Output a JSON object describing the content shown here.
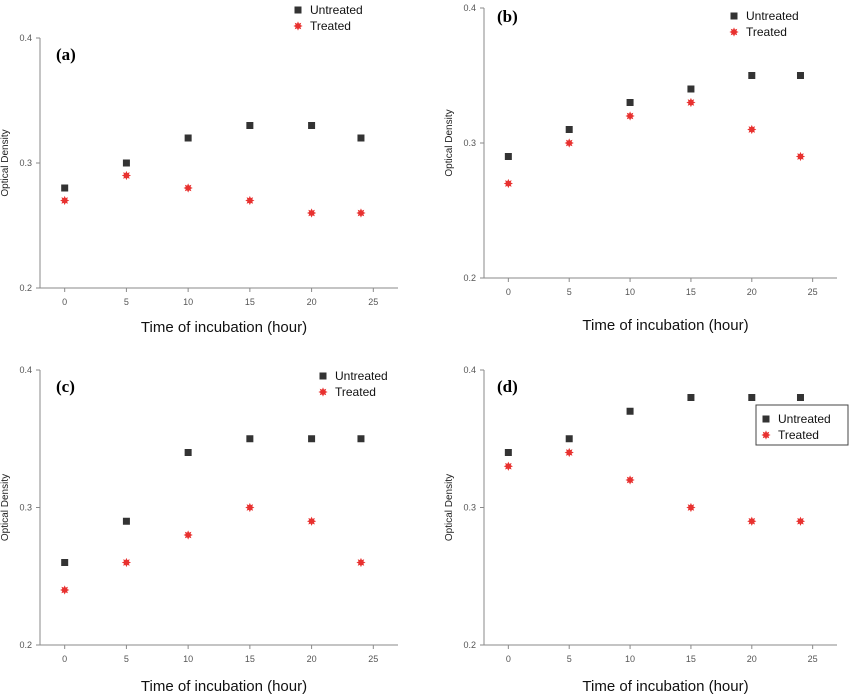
{
  "chart_data": [
    {
      "type": "scatter",
      "panel_label": "(a)",
      "xlabel": "Time of incubation (hour)",
      "ylabel": "Optical Density",
      "xlim": [
        -2,
        27
      ],
      "ylim": [
        0.2,
        0.4
      ],
      "xticks": [
        0,
        5,
        10,
        15,
        20,
        25
      ],
      "yticks": [
        0.2,
        0.3,
        0.4
      ],
      "ytick_labels": [
        "0.2",
        "0.3",
        "0.4"
      ],
      "legend_position": "top-right",
      "x": [
        0,
        5,
        10,
        15,
        20,
        24
      ],
      "series": [
        {
          "name": "Untreated",
          "values": [
            0.28,
            0.3,
            0.32,
            0.33,
            0.33,
            0.32
          ]
        },
        {
          "name": "Treated",
          "values": [
            0.27,
            0.29,
            0.28,
            0.27,
            0.26,
            0.26
          ]
        }
      ]
    },
    {
      "type": "scatter",
      "panel_label": "(b)",
      "xlabel": "Time of incubation (hour)",
      "ylabel": "Optical Density",
      "xlim": [
        -2,
        27
      ],
      "ylim": [
        0.2,
        0.4
      ],
      "xticks": [
        0,
        5,
        10,
        15,
        20,
        25
      ],
      "yticks": [
        0.2,
        0.3,
        0.4
      ],
      "ytick_labels": [
        "0.2",
        "0.3",
        "0.4"
      ],
      "legend_position": "top-right",
      "x": [
        0,
        5,
        10,
        15,
        20,
        24
      ],
      "series": [
        {
          "name": "Untreated",
          "values": [
            0.29,
            0.31,
            0.33,
            0.34,
            0.35,
            0.35
          ]
        },
        {
          "name": "Treated",
          "values": [
            0.27,
            0.3,
            0.32,
            0.33,
            0.31,
            0.29
          ]
        }
      ]
    },
    {
      "type": "scatter",
      "panel_label": "(c)",
      "xlabel": "Time of incubation (hour)",
      "ylabel": "Optical Density",
      "xlim": [
        -2,
        27
      ],
      "ylim": [
        0.2,
        0.4
      ],
      "xticks": [
        0,
        5,
        10,
        15,
        20,
        25
      ],
      "yticks": [
        0.2,
        0.3,
        0.4
      ],
      "ytick_labels": [
        "0.2",
        "0.3",
        "0.4"
      ],
      "legend_position": "top-right",
      "x": [
        0,
        5,
        10,
        15,
        20,
        24
      ],
      "series": [
        {
          "name": "Untreated",
          "values": [
            0.26,
            0.29,
            0.34,
            0.35,
            0.35,
            0.35
          ]
        },
        {
          "name": "Treated",
          "values": [
            0.24,
            0.26,
            0.28,
            0.3,
            0.29,
            0.26
          ]
        }
      ]
    },
    {
      "type": "scatter",
      "panel_label": "(d)",
      "xlabel": "Time of incubation (hour)",
      "ylabel": "Optical Density",
      "xlim": [
        -2,
        27
      ],
      "ylim": [
        0.2,
        0.4
      ],
      "xticks": [
        0,
        5,
        10,
        15,
        20,
        25
      ],
      "yticks": [
        0.2,
        0.3,
        0.4
      ],
      "ytick_labels": [
        "0.2",
        "0.3",
        "0.4"
      ],
      "legend_position": "top-right",
      "x": [
        0,
        5,
        10,
        15,
        20,
        24
      ],
      "series": [
        {
          "name": "Untreated",
          "values": [
            0.34,
            0.35,
            0.37,
            0.38,
            0.38,
            0.38
          ]
        },
        {
          "name": "Treated",
          "values": [
            0.33,
            0.34,
            0.32,
            0.3,
            0.29,
            0.29
          ]
        }
      ]
    }
  ],
  "colors": {
    "untreated": "#333333",
    "treated": "#e8312f"
  }
}
